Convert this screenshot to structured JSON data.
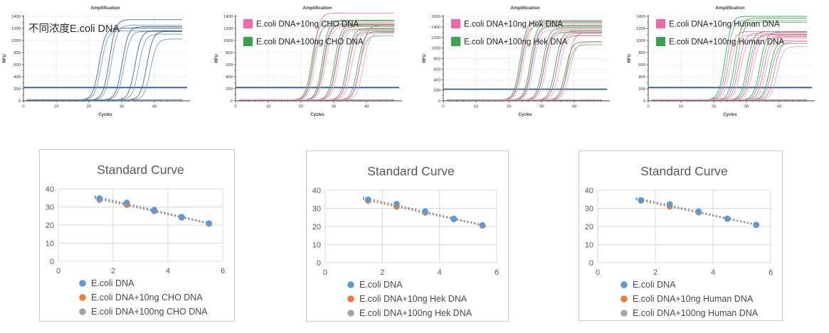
{
  "colors": {
    "ecoli_blue": "#5b9bd5",
    "orange": "#ed7d31",
    "gray": "#a5a5a5",
    "curve_blue": "#2e5f97",
    "curve_blue_light": "#6e96c2",
    "pink": "#ee6aa6",
    "pink_light": "#f59cc3",
    "green": "#3aa24f",
    "green_light": "#5cb86a",
    "threshold": "#2e5e94",
    "axis": "#3a3a3a",
    "grid_dotted": "#b5b5b5",
    "std_grid": "#d9d9d9",
    "std_text": "#595959",
    "legend_text": "#4a4a4a",
    "amp_legend_text": "#1f1f1f"
  },
  "chart_data": [
    {
      "id": "amp1",
      "type": "line",
      "title": "Amplification",
      "xlabel": "Cycles",
      "ylabel": "RFU",
      "xlim": [
        0,
        50
      ],
      "xticks": [
        0,
        10,
        20,
        30,
        40
      ],
      "ylim": [
        0,
        1400
      ],
      "ytick_step": 200,
      "threshold_rfu": 220,
      "annotation": "不同浓度E.coli DNA",
      "legend": [],
      "series": [
        {
          "name": "E.coli DNA",
          "color_key": "curve_blue",
          "alt_color_key": "curve_blue_light",
          "baseline": 16,
          "curves": [
            [
              21.6,
              1205
            ],
            [
              22.3,
              1160
            ],
            [
              24.6,
              1345
            ],
            [
              25.3,
              1255
            ],
            [
              28.6,
              1230
            ],
            [
              29.3,
              1150
            ],
            [
              32.6,
              1160
            ],
            [
              33.8,
              1105
            ],
            [
              36.2,
              1150
            ],
            [
              37.5,
              1025
            ]
          ]
        }
      ]
    },
    {
      "id": "amp2",
      "type": "line",
      "title": "Amplification",
      "xlabel": "Cycles",
      "ylabel": "RFU",
      "xlim": [
        0,
        50
      ],
      "xticks": [
        0,
        10,
        20,
        30,
        40
      ],
      "ylim": [
        0,
        1400
      ],
      "ytick_step": 200,
      "threshold_rfu": 220,
      "annotation": "",
      "legend": [
        {
          "label": "E.coli DNA+10ng CHO DNA",
          "color_key": "pink"
        },
        {
          "label": "E.coli DNA+100ng CHO DNA",
          "color_key": "green"
        }
      ],
      "series": [
        {
          "name": "E.coli DNA+100ng CHO DNA",
          "color_key": "green",
          "alt_color_key": "green_light",
          "baseline": 15,
          "curves": [
            [
              21.7,
              1320
            ],
            [
              22.3,
              1250
            ],
            [
              24.9,
              1335
            ],
            [
              25.5,
              1265
            ],
            [
              28.7,
              1255
            ],
            [
              29.3,
              1190
            ],
            [
              32.6,
              1200
            ],
            [
              33.2,
              1140
            ],
            [
              35.9,
              1150
            ],
            [
              36.5,
              1080
            ]
          ]
        },
        {
          "name": "E.coli DNA+10ng CHO DNA",
          "color_key": "pink",
          "alt_color_key": "pink_light",
          "baseline": 14,
          "curves": [
            [
              22.1,
              1455
            ],
            [
              22.8,
              1295
            ],
            [
              25.3,
              1280
            ],
            [
              26.0,
              1230
            ],
            [
              29.2,
              1230
            ],
            [
              29.9,
              1170
            ],
            [
              33.2,
              1170
            ],
            [
              34.0,
              1120
            ],
            [
              36.6,
              1250
            ],
            [
              37.6,
              1130
            ]
          ]
        }
      ]
    },
    {
      "id": "amp3",
      "type": "line",
      "title": "Amplification",
      "xlabel": "Cycles",
      "ylabel": "RFU",
      "xlim": [
        0,
        50
      ],
      "xticks": [
        0,
        10,
        20,
        30,
        40
      ],
      "ylim": [
        0,
        1600
      ],
      "ytick_step": 200,
      "threshold_rfu": 220,
      "annotation": "",
      "legend": [
        {
          "label": "E.coli DNA+10ng Hek DNA",
          "color_key": "pink"
        },
        {
          "label": "E.coli DNA+100ng Hek DNA",
          "color_key": "green"
        }
      ],
      "series": [
        {
          "name": "E.coli DNA+100ng Hek DNA",
          "color_key": "green",
          "alt_color_key": "green_light",
          "baseline": 15,
          "curves": [
            [
              21.7,
              1520
            ],
            [
              22.3,
              1430
            ],
            [
              24.9,
              1480
            ],
            [
              25.5,
              1400
            ],
            [
              28.7,
              1380
            ],
            [
              29.3,
              1300
            ],
            [
              32.6,
              1320
            ],
            [
              33.2,
              1240
            ],
            [
              35.9,
              1120
            ],
            [
              36.5,
              1060
            ]
          ]
        },
        {
          "name": "E.coli DNA+10ng Hek DNA",
          "color_key": "pink",
          "alt_color_key": "pink_light",
          "baseline": 14,
          "curves": [
            [
              22.1,
              1500
            ],
            [
              22.8,
              1455
            ],
            [
              25.3,
              1420
            ],
            [
              26.0,
              1350
            ],
            [
              29.2,
              1330
            ],
            [
              29.9,
              1290
            ],
            [
              33.2,
              1280
            ],
            [
              34.0,
              1230
            ],
            [
              36.4,
              1290
            ],
            [
              37.2,
              1100
            ]
          ]
        }
      ]
    },
    {
      "id": "amp4",
      "type": "line",
      "title": "Amplification",
      "xlabel": "Cycles",
      "ylabel": "RFU",
      "xlim": [
        0,
        50
      ],
      "xticks": [
        0,
        10,
        20,
        30,
        40
      ],
      "ylim": [
        0,
        1400
      ],
      "ytick_step": 200,
      "threshold_rfu": 220,
      "annotation": "",
      "legend": [
        {
          "label": "E.coli DNA+10ng Human DNA",
          "color_key": "pink"
        },
        {
          "label": "E.coli DNA+100ng Human DNA",
          "color_key": "green"
        }
      ],
      "series": [
        {
          "name": "E.coli DNA+100ng Human DNA",
          "color_key": "green",
          "alt_color_key": "green_light",
          "baseline": 15,
          "curves": [
            [
              21.8,
              1400
            ],
            [
              22.4,
              1330
            ],
            [
              24.9,
              1370
            ],
            [
              25.6,
              1300
            ],
            [
              28.8,
              1150
            ],
            [
              29.4,
              1100
            ],
            [
              32.7,
              1140
            ],
            [
              33.3,
              1080
            ],
            [
              35.8,
              1000
            ],
            [
              36.4,
              950
            ]
          ]
        },
        {
          "name": "E.coli DNA+10ng Human DNA",
          "color_key": "pink",
          "alt_color_key": "pink_light",
          "baseline": 14,
          "curves": [
            [
              23.0,
              1150
            ],
            [
              23.7,
              1090
            ],
            [
              26.2,
              1120
            ],
            [
              26.9,
              1060
            ],
            [
              30.0,
              1100
            ],
            [
              30.7,
              1040
            ],
            [
              34.0,
              1060
            ],
            [
              34.7,
              1000
            ],
            [
              37.3,
              980
            ],
            [
              38.2,
              900
            ]
          ]
        }
      ]
    },
    {
      "id": "std1",
      "type": "scatter",
      "title": "Standard Curve",
      "xlim": [
        0,
        6
      ],
      "xticks": [
        0,
        2,
        4,
        6
      ],
      "ylim": [
        0,
        40
      ],
      "yticks": [
        0,
        10,
        20,
        30,
        40
      ],
      "x": [
        1.5,
        2.5,
        3.5,
        4.5,
        5.5
      ],
      "grid": true,
      "legend_position": "bottom",
      "series": [
        {
          "name": "E.coli DNA",
          "color_key": "ecoli_blue",
          "values": [
            34.8,
            32.4,
            28.4,
            24.5,
            21.0
          ]
        },
        {
          "name": "E.coli DNA+10ng CHO DNA",
          "color_key": "orange",
          "values": [
            34.4,
            31.6,
            27.9,
            24.2,
            20.8
          ]
        },
        {
          "name": "E.coli DNA+100ng CHO DNA",
          "color_key": "gray",
          "values": [
            33.9,
            31.1,
            27.6,
            24.1,
            20.7
          ]
        }
      ]
    },
    {
      "id": "std2",
      "type": "scatter",
      "title": "Standard Curve",
      "xlim": [
        0,
        6
      ],
      "xticks": [
        0,
        2,
        4,
        6
      ],
      "ylim": [
        0,
        40
      ],
      "yticks": [
        0,
        10,
        20,
        30,
        40
      ],
      "x": [
        1.5,
        2.5,
        3.5,
        4.5,
        5.5
      ],
      "grid": true,
      "legend_position": "bottom",
      "series": [
        {
          "name": "E.coli DNA",
          "color_key": "ecoli_blue",
          "values": [
            34.9,
            32.5,
            28.4,
            24.4,
            20.7
          ]
        },
        {
          "name": "E.coli DNA+10ng Hek DNA",
          "color_key": "orange",
          "values": [
            34.4,
            31.2,
            27.8,
            24.1,
            20.5
          ]
        },
        {
          "name": "E.coli DNA+100ng Hek DNA",
          "color_key": "gray",
          "values": [
            34.3,
            30.9,
            27.6,
            24.0,
            20.5
          ]
        }
      ]
    },
    {
      "id": "std3",
      "type": "scatter",
      "title": "Standard Curve",
      "xlim": [
        0,
        6
      ],
      "xticks": [
        0,
        2,
        4,
        6
      ],
      "ylim": [
        0,
        40
      ],
      "yticks": [
        0,
        10,
        20,
        30,
        40
      ],
      "x": [
        1.5,
        2.5,
        3.5,
        4.5,
        5.5
      ],
      "grid": true,
      "legend_position": "bottom",
      "series": [
        {
          "name": "E.coli DNA",
          "color_key": "ecoli_blue",
          "values": [
            34.6,
            32.3,
            28.3,
            24.4,
            20.9
          ]
        },
        {
          "name": "E.coli DNA+10ng Human DNA",
          "color_key": "orange",
          "values": [
            34.5,
            31.2,
            27.9,
            24.3,
            21.0
          ]
        },
        {
          "name": "E.coli DNA+100ng Human DNA",
          "color_key": "gray",
          "values": [
            34.3,
            31.0,
            27.7,
            24.2,
            20.8
          ]
        }
      ]
    }
  ]
}
